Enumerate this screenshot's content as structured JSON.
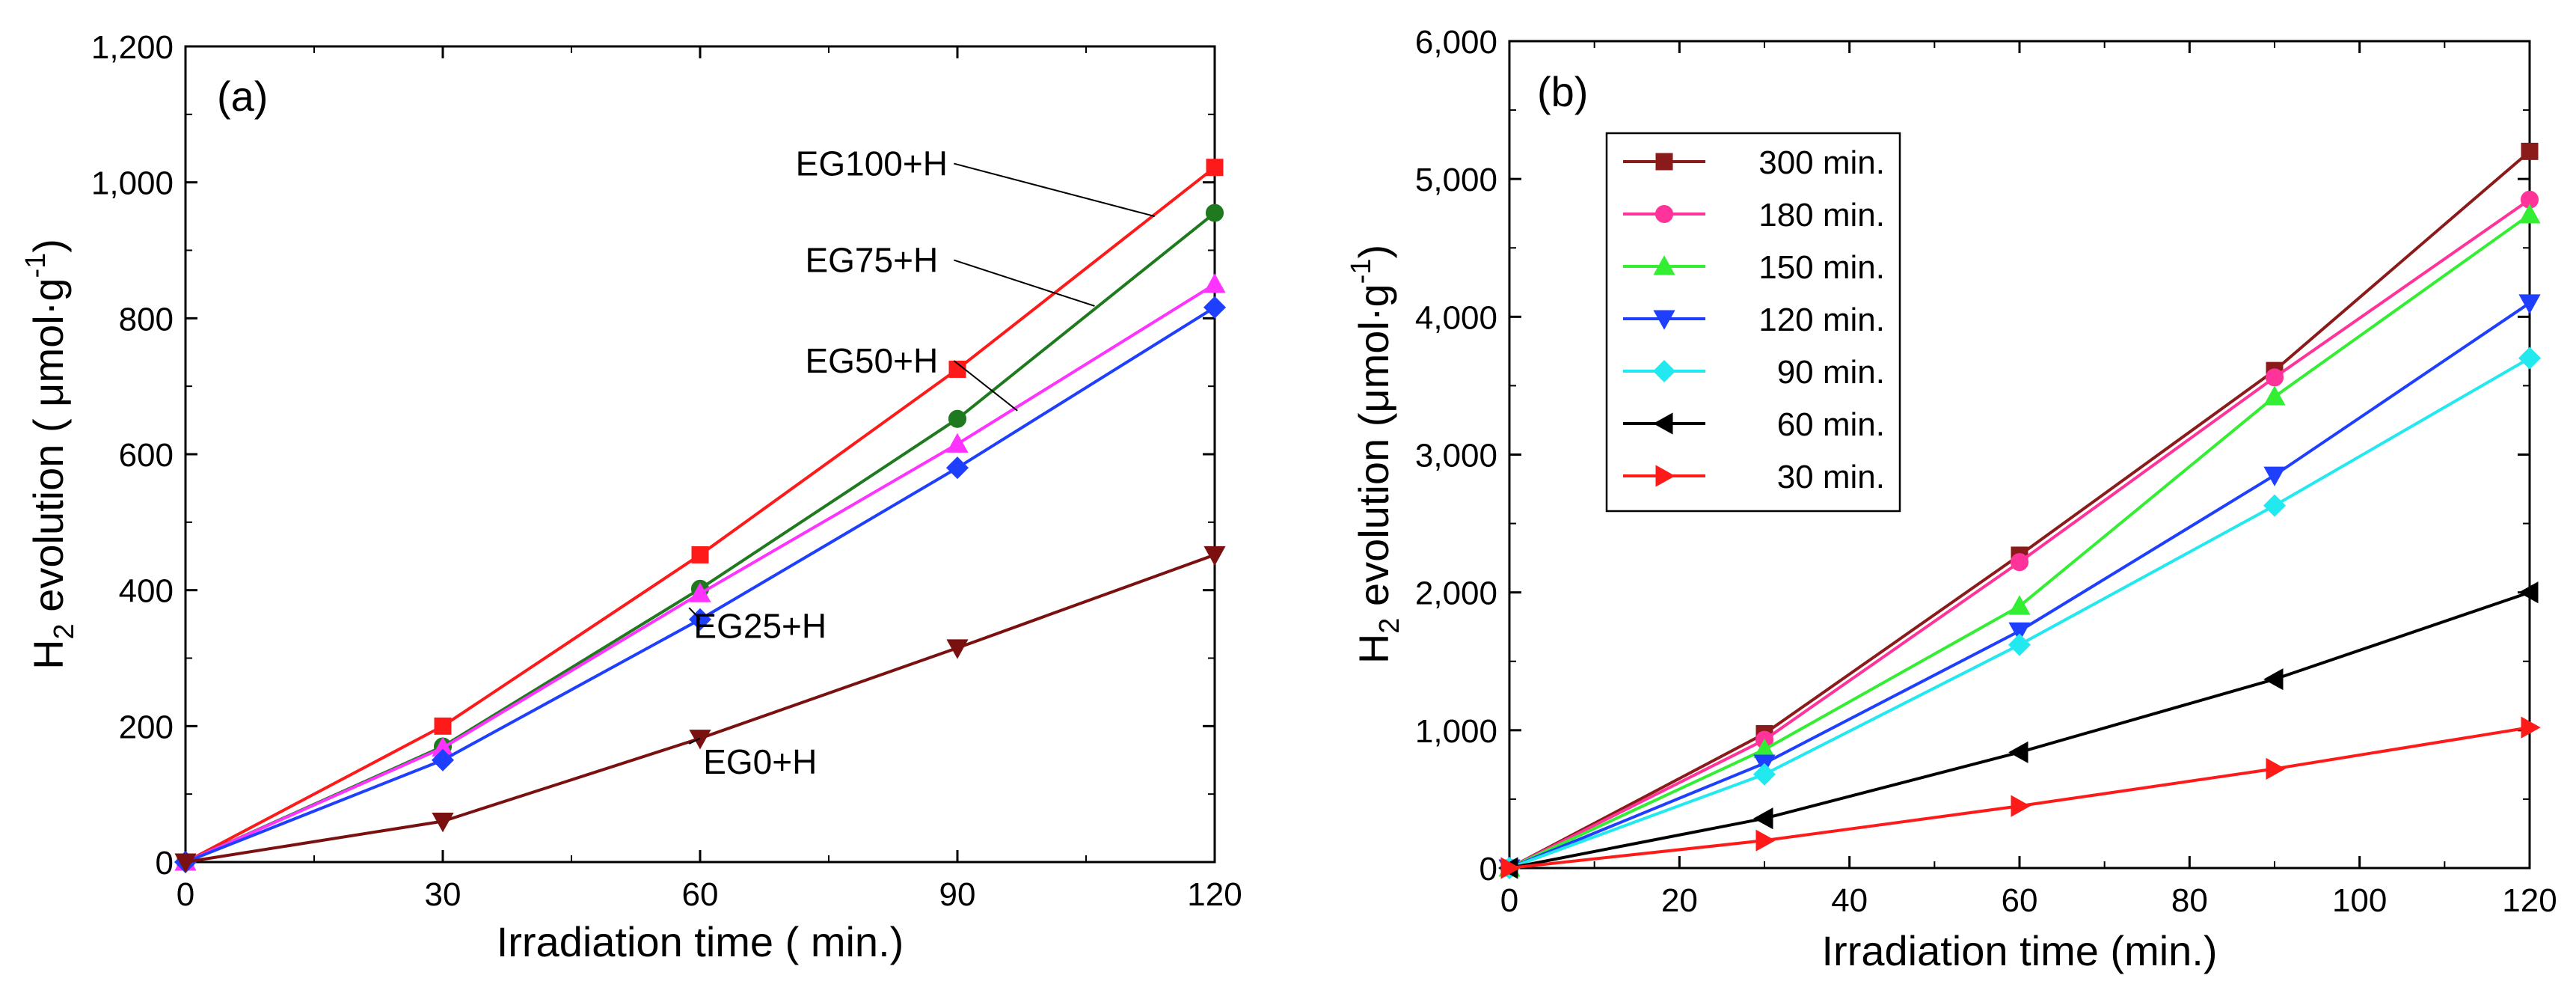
{
  "colors": {
    "red": "#ff1a1a",
    "green": "#1f7a1f",
    "magenta": "#ff33ff",
    "blue": "#1f3fff",
    "darkred": "#7a1010",
    "maroon": "#8b1a1a",
    "pink": "#ff3399",
    "lime": "#33ee33",
    "cyan": "#22e8f0",
    "black": "#000000"
  },
  "chart_data": [
    {
      "type": "line",
      "panel_label": "(a)",
      "xlabel": "Irradiation time ( min.)",
      "ylabel_main": "H",
      "ylabel_sub": "2",
      "ylabel_rest": " evolution ( μmol·g",
      "ylabel_sup": "-1",
      "ylabel_close": ")",
      "xlim": [
        0,
        120
      ],
      "ylim": [
        0,
        1200
      ],
      "xticks": [
        0,
        30,
        60,
        90,
        120
      ],
      "xtick_labels": [
        "0",
        "30",
        "60",
        "90",
        "120"
      ],
      "yticks": [
        0,
        200,
        400,
        600,
        800,
        1000,
        1200
      ],
      "ytick_labels": [
        "0",
        "200",
        "400",
        "600",
        "800",
        "1,000",
        "1,200"
      ],
      "x": [
        0,
        30,
        60,
        90,
        120
      ],
      "series": [
        {
          "name": "EG100+H",
          "color": "red",
          "marker": "square",
          "values": [
            0,
            200,
            452,
            725,
            1022
          ]
        },
        {
          "name": "EG75+H",
          "color": "green",
          "marker": "circle",
          "values": [
            0,
            170,
            402,
            652,
            955
          ]
        },
        {
          "name": "EG50+H",
          "color": "magenta",
          "marker": "triangle-up",
          "values": [
            0,
            168,
            395,
            615,
            850
          ]
        },
        {
          "name": "EG25+H",
          "color": "blue",
          "marker": "diamond",
          "values": [
            0,
            150,
            357,
            580,
            816
          ]
        },
        {
          "name": "EG0+H",
          "color": "darkred",
          "marker": "triangle-down",
          "values": [
            0,
            60,
            182,
            315,
            452
          ]
        }
      ],
      "annotations": [
        {
          "text": "EG100+H",
          "series": 0,
          "text_at": [
            80,
            1010
          ],
          "arrow_to": [
            113,
            950
          ]
        },
        {
          "text": "EG75+H",
          "series": 1,
          "text_at": [
            80,
            868
          ],
          "arrow_to": [
            106,
            818
          ]
        },
        {
          "text": "EG50+H",
          "series": 2,
          "text_at": [
            80,
            720
          ],
          "arrow_to": [
            97,
            664
          ]
        },
        {
          "text": "EG25+H",
          "series": 3,
          "text_at": [
            67,
            330
          ],
          "arrow_to": [
            60,
            357
          ]
        },
        {
          "text": "EG0+H",
          "series": 4,
          "text_at": [
            67,
            130
          ],
          "arrow_to": [
            60,
            182
          ]
        }
      ]
    },
    {
      "type": "line",
      "panel_label": "(b)",
      "xlabel": "Irradiation time (min.)",
      "ylabel_main": "H",
      "ylabel_sub": "2",
      "ylabel_rest": " evolution (μmol·g",
      "ylabel_sup": "-1",
      "ylabel_close": ")",
      "xlim": [
        0,
        120
      ],
      "ylim": [
        0,
        6000
      ],
      "xticks": [
        0,
        20,
        40,
        60,
        80,
        100,
        120
      ],
      "xtick_labels": [
        "0",
        "20",
        "40",
        "60",
        "80",
        "100",
        "120"
      ],
      "yticks": [
        0,
        1000,
        2000,
        3000,
        4000,
        5000,
        6000
      ],
      "ytick_labels": [
        "0",
        "1,000",
        "2,000",
        "3,000",
        "4,000",
        "5,000",
        "6,000"
      ],
      "legend_position": "top-left",
      "x": [
        0,
        30,
        60,
        90,
        120
      ],
      "series": [
        {
          "name": "300 min.",
          "color": "maroon",
          "marker": "square",
          "values": [
            0,
            975,
            2270,
            3610,
            5200
          ]
        },
        {
          "name": "180 min.",
          "color": "pink",
          "marker": "circle",
          "values": [
            0,
            930,
            2220,
            3560,
            4850
          ]
        },
        {
          "name": "150 min.",
          "color": "lime",
          "marker": "triangle-up",
          "values": [
            0,
            860,
            1900,
            3420,
            4740
          ]
        },
        {
          "name": "120 min.",
          "color": "blue",
          "marker": "triangle-down",
          "values": [
            0,
            760,
            1720,
            2850,
            4100
          ]
        },
        {
          "name": "90 min.",
          "color": "cyan",
          "marker": "diamond",
          "values": [
            0,
            680,
            1620,
            2630,
            3700
          ]
        },
        {
          "name": "60 min.",
          "color": "black",
          "marker": "triangle-left",
          "values": [
            0,
            360,
            840,
            1370,
            2000
          ]
        },
        {
          "name": "30 min.",
          "color": "red",
          "marker": "triangle-right",
          "values": [
            0,
            200,
            450,
            720,
            1020
          ]
        }
      ]
    }
  ]
}
